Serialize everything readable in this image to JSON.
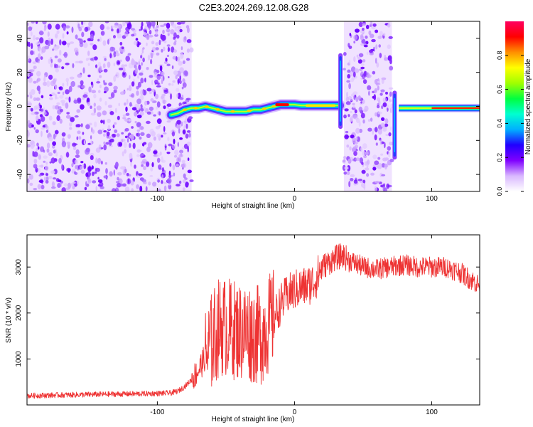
{
  "page": {
    "title": "C2E3.2024.269.12.08.G28"
  },
  "chart_data": [
    {
      "type": "heatmap",
      "xlabel": "Height of straight line (km)",
      "ylabel": "Frequency (Hz)",
      "xlim": [
        -195,
        135
      ],
      "ylim": [
        -50,
        50
      ],
      "x_ticks": [
        -100,
        0,
        100
      ],
      "y_ticks": [
        -40,
        -20,
        0,
        20,
        40
      ],
      "noise_regions_km": [
        [
          -195,
          -75
        ],
        [
          36,
          71
        ]
      ],
      "signal_ridge": {
        "x": [
          -90,
          -85,
          -80,
          -75,
          -70,
          -65,
          -60,
          -55,
          -50,
          -45,
          -40,
          -35,
          -30,
          -25,
          -20,
          -15,
          -10,
          -5,
          0,
          5,
          10,
          15,
          20,
          25,
          30,
          33
        ],
        "y": [
          -5,
          -4,
          -2,
          -1,
          -1,
          0,
          -1,
          -2,
          -3,
          -3,
          -3,
          -3,
          -2,
          -2,
          -1,
          0,
          1,
          1,
          1,
          0.5,
          0.5,
          0.5,
          0.5,
          0.5,
          0.5,
          0.5
        ]
      },
      "spikes": [
        {
          "x": 33.5,
          "y_min": -12,
          "y_max": 30
        },
        {
          "x": 73,
          "y_min": -30,
          "y_max": 8
        }
      ],
      "trail_right": {
        "x": [
          76,
          135
        ],
        "y": -1
      },
      "colorbar": {
        "label": "Normalized spectral amplitude",
        "range": [
          0.0,
          1.0
        ],
        "ticks": [
          "0.0",
          "0.2",
          "0.4",
          "0.6",
          "0.8"
        ],
        "colors": [
          "#ffffff",
          "#d9b8ff",
          "#8000ff",
          "#2000ff",
          "#00b0ff",
          "#00ffd0",
          "#00ff40",
          "#a0ff00",
          "#ffff00",
          "#ff9000",
          "#ff0000",
          "#ff0060"
        ]
      }
    },
    {
      "type": "line",
      "xlabel": "Height of straight line (km)",
      "ylabel": "SNR (10 * v/v)",
      "xlim": [
        -195,
        135
      ],
      "ylim": [
        0,
        3700
      ],
      "x_ticks": [
        -100,
        0,
        100
      ],
      "y_ticks": [
        1000,
        2000,
        3000
      ],
      "line_color": "#ee3333",
      "series": [
        {
          "x": [
            -195,
            -180,
            -160,
            -140,
            -120,
            -100,
            -90,
            -85,
            -80,
            -75,
            -70,
            -65,
            -60,
            -55,
            -50,
            -45,
            -40,
            -35,
            -30,
            -25,
            -20,
            -15,
            -10,
            -5,
            0,
            5,
            10,
            15,
            20,
            25,
            30,
            35,
            40,
            50,
            60,
            70,
            80,
            90,
            100,
            110,
            120,
            130,
            135
          ],
          "y": [
            200,
            210,
            220,
            230,
            240,
            250,
            260,
            300,
            400,
            550,
            750,
            1050,
            1400,
            1700,
            1700,
            1650,
            1600,
            1600,
            1550,
            1500,
            1700,
            1900,
            2200,
            2400,
            2500,
            2550,
            2600,
            2700,
            3000,
            3100,
            3200,
            3250,
            3150,
            3000,
            2950,
            3000,
            3050,
            3000,
            3000,
            3000,
            2900,
            2700,
            2600
          ]
        }
      ]
    }
  ]
}
